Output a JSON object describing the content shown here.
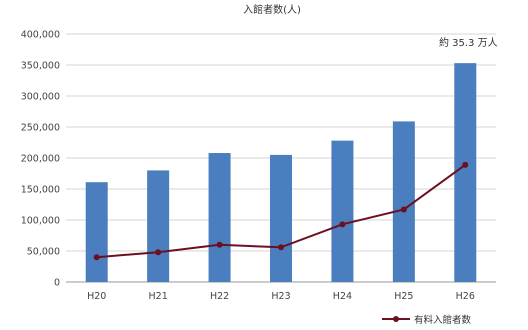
{
  "chart_data": {
    "type": "bar",
    "title": "入館者数(人)",
    "categories": [
      "H20",
      "H21",
      "H22",
      "H23",
      "H24",
      "H25",
      "H26"
    ],
    "ylim": [
      0,
      400000
    ],
    "yticks": [
      0,
      50000,
      100000,
      150000,
      200000,
      250000,
      300000,
      350000,
      400000
    ],
    "ytick_labels": [
      "0",
      "50,000",
      "100,000",
      "150,000",
      "200,000",
      "250,000",
      "300,000",
      "350,000",
      "400,000"
    ],
    "grid": true,
    "legend_position": "bottom-right",
    "series": [
      {
        "type": "bar",
        "color": "#4a7ebf",
        "values": [
          161000,
          180000,
          208000,
          205000,
          228000,
          259000,
          353000
        ]
      },
      {
        "type": "line",
        "name": "有料入館者数",
        "color": "#6b1020",
        "values": [
          40000,
          48000,
          60000,
          56000,
          93000,
          117000,
          189000
        ]
      }
    ],
    "annotation": {
      "text": "約 35.3 万人",
      "category": "H26",
      "value": 353000
    }
  }
}
